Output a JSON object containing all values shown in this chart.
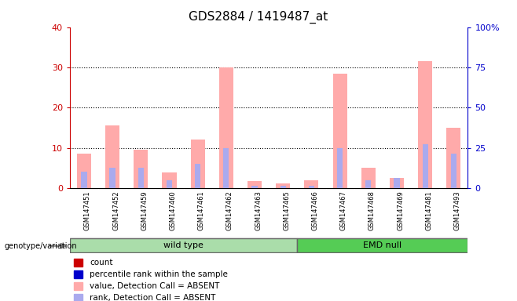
{
  "title": "GDS2884 / 1419487_at",
  "samples": [
    "GSM147451",
    "GSM147452",
    "GSM147459",
    "GSM147460",
    "GSM147461",
    "GSM147462",
    "GSM147463",
    "GSM147465",
    "GSM147466",
    "GSM147467",
    "GSM147468",
    "GSM147469",
    "GSM147481",
    "GSM147493"
  ],
  "absent_value": [
    8.5,
    15.5,
    9.5,
    3.8,
    12.0,
    30.0,
    1.8,
    1.2,
    2.0,
    28.5,
    5.0,
    2.5,
    31.5,
    15.0
  ],
  "absent_rank": [
    4.0,
    5.0,
    5.0,
    2.0,
    6.0,
    10.0,
    0.5,
    0.5,
    0.5,
    10.0,
    2.0,
    2.5,
    11.0,
    8.5
  ],
  "groups": [
    {
      "label": "wild type",
      "start": 0,
      "end": 8,
      "color": "#aaddaa"
    },
    {
      "label": "EMD null",
      "start": 8,
      "end": 14,
      "color": "#55cc55"
    }
  ],
  "group_label_prefix": "genotype/variation",
  "ylim_left": [
    0,
    40
  ],
  "ylim_right": [
    0,
    100
  ],
  "yticks_left": [
    0,
    10,
    20,
    30,
    40
  ],
  "yticks_right": [
    0,
    25,
    50,
    75,
    100
  ],
  "left_tick_color": "#cc0000",
  "right_tick_color": "#0000cc",
  "absent_value_color": "#ffaaaa",
  "absent_rank_color": "#aaaaee",
  "legend_items": [
    {
      "label": "count",
      "color": "#cc0000"
    },
    {
      "label": "percentile rank within the sample",
      "color": "#0000cc"
    },
    {
      "label": "value, Detection Call = ABSENT",
      "color": "#ffaaaa"
    },
    {
      "label": "rank, Detection Call = ABSENT",
      "color": "#aaaaee"
    }
  ],
  "background_color": "#cccccc",
  "grid_color": "black"
}
